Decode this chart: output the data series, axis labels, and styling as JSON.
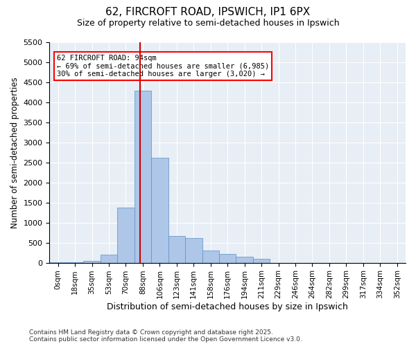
{
  "title1": "62, FIRCROFT ROAD, IPSWICH, IP1 6PX",
  "title2": "Size of property relative to semi-detached houses in Ipswich",
  "xlabel": "Distribution of semi-detached houses by size in Ipswich",
  "ylabel": "Number of semi-detached properties",
  "property_size": 94,
  "annotation_title": "62 FIRCROFT ROAD: 94sqm",
  "annotation_line1": "← 69% of semi-detached houses are smaller (6,985)",
  "annotation_line2": "30% of semi-detached houses are larger (3,020) →",
  "footnote1": "Contains HM Land Registry data © Crown copyright and database right 2025.",
  "footnote2": "Contains public sector information licensed under the Open Government Licence v3.0.",
  "bar_color": "#aec6e8",
  "bar_edge_color": "#5a8fc2",
  "line_color": "#cc0000",
  "background_color": "#e8eef5",
  "bin_labels": [
    "0sqm",
    "18sqm",
    "35sqm",
    "53sqm",
    "70sqm",
    "88sqm",
    "106sqm",
    "123sqm",
    "141sqm",
    "158sqm",
    "176sqm",
    "194sqm",
    "211sqm",
    "229sqm",
    "246sqm",
    "264sqm",
    "282sqm",
    "299sqm",
    "317sqm",
    "334sqm",
    "352sqm"
  ],
  "bin_edges": [
    0,
    18,
    35,
    53,
    70,
    88,
    106,
    123,
    141,
    158,
    176,
    194,
    211,
    229,
    246,
    264,
    282,
    299,
    317,
    334,
    352
  ],
  "bar_values": [
    5,
    10,
    50,
    200,
    1380,
    4300,
    2620,
    670,
    620,
    310,
    210,
    150,
    100,
    0,
    0,
    0,
    0,
    0,
    0,
    0,
    0
  ],
  "ylim": [
    0,
    5500
  ],
  "yticks": [
    0,
    500,
    1000,
    1500,
    2000,
    2500,
    3000,
    3500,
    4000,
    4500,
    5000,
    5500
  ]
}
